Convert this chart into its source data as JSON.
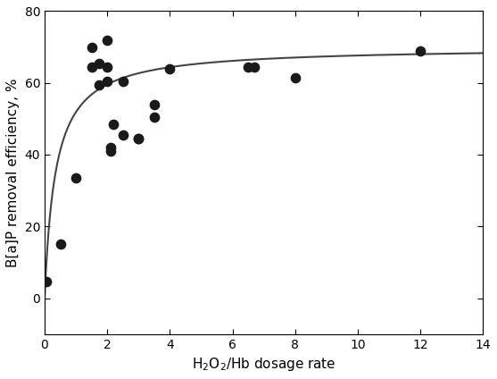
{
  "scatter_x": [
    0.05,
    0.5,
    1.0,
    1.5,
    1.5,
    1.75,
    1.75,
    2.0,
    2.0,
    2.0,
    2.1,
    2.1,
    2.2,
    2.5,
    2.5,
    3.0,
    3.0,
    3.5,
    3.5,
    4.0,
    6.5,
    6.7,
    8.0,
    12.0
  ],
  "scatter_y": [
    4.5,
    15.0,
    33.5,
    70.0,
    64.5,
    59.5,
    65.5,
    72.0,
    60.5,
    64.5,
    41.0,
    42.0,
    48.5,
    45.5,
    60.5,
    44.5,
    44.5,
    50.5,
    54.0,
    64.0,
    64.5,
    64.5,
    61.5,
    69.0
  ],
  "fit_a": 70.0,
  "fit_b": 0.35,
  "xlabel": "H$_2$O$_2$/Hb dosage rate",
  "ylabel": "B[a]P removal efficiency, %",
  "xlim": [
    0,
    14
  ],
  "ylim": [
    -10,
    80
  ],
  "xticks": [
    0,
    2,
    4,
    6,
    8,
    10,
    12,
    14
  ],
  "yticks": [
    0,
    20,
    40,
    60,
    80
  ],
  "marker_color": "#1a1a1a",
  "marker_size": 55,
  "line_color": "#444444",
  "line_width": 1.5,
  "background_color": "#ffffff"
}
